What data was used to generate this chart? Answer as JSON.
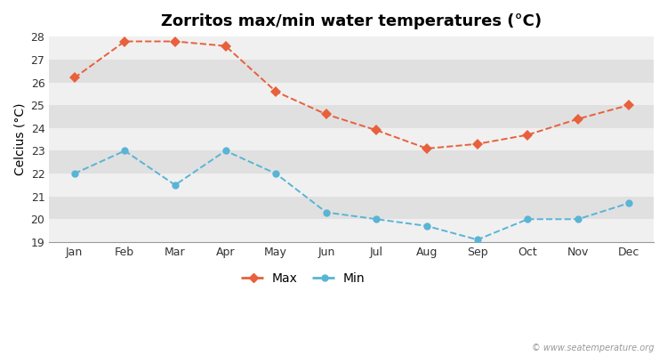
{
  "title": "Zorritos max/min water temperatures (°C)",
  "ylabel": "Celcius (°C)",
  "months": [
    "Jan",
    "Feb",
    "Mar",
    "Apr",
    "May",
    "Jun",
    "Jul",
    "Aug",
    "Sep",
    "Oct",
    "Nov",
    "Dec"
  ],
  "max_temps": [
    26.2,
    27.8,
    27.8,
    27.6,
    25.6,
    24.6,
    23.9,
    23.1,
    23.3,
    23.7,
    24.4,
    25.0
  ],
  "min_temps": [
    22.0,
    23.0,
    21.5,
    23.0,
    22.0,
    20.3,
    20.0,
    19.7,
    19.1,
    20.0,
    20.0,
    20.7
  ],
  "max_color": "#e8603c",
  "min_color": "#5ab4d6",
  "bg_color": "#ffffff",
  "band_light": "#f0f0f0",
  "band_dark": "#e0e0e0",
  "ylim": [
    19.0,
    28.05
  ],
  "yticks": [
    19,
    20,
    21,
    22,
    23,
    24,
    25,
    26,
    27,
    28
  ],
  "title_fontsize": 13,
  "axis_label_fontsize": 10,
  "tick_fontsize": 9,
  "legend_labels": [
    "Max",
    "Min"
  ],
  "watermark": "© www.seatemperature.org",
  "line_style": "--",
  "line_width": 1.4
}
